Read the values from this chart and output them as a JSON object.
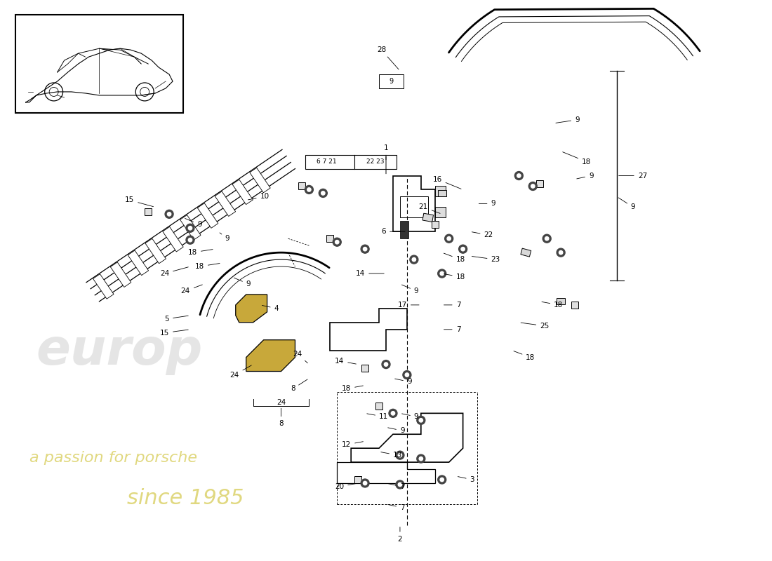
{
  "background_color": "#ffffff",
  "line_color": "#000000",
  "highlight_color": "#c8a83a",
  "gray_part": "#cccccc",
  "watermark1": "europ",
  "watermark2": "a passion for\nporsche",
  "watermark3": "since 1985",
  "wm_color1": "#cccccc",
  "wm_color2": "#d4c84a",
  "figsize": [
    11.0,
    8.0
  ],
  "dpi": 100
}
